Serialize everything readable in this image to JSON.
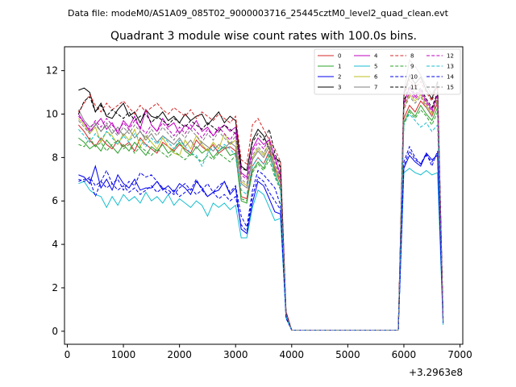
{
  "header": {
    "file_line": "Data file: modeM0/AS1A09_085T02_9000003716_25445cztM0_level2_quad_clean.evt"
  },
  "chart_data": {
    "type": "line",
    "title": "Quadrant 3 module wise count rates with 100.0s bins.",
    "xlabel": "",
    "ylabel": "",
    "x_offset_label": "+3.2963e8",
    "xlim": [
      -50,
      7050
    ],
    "ylim": [
      -0.6,
      13.1
    ],
    "xticks": [
      0,
      1000,
      2000,
      3000,
      4000,
      5000,
      6000,
      7000
    ],
    "yticks": [
      0,
      2,
      4,
      6,
      8,
      10,
      12
    ],
    "legend_position": "top-right",
    "x": [
      200,
      300,
      400,
      500,
      600,
      700,
      800,
      900,
      1000,
      1100,
      1200,
      1300,
      1400,
      1500,
      1600,
      1700,
      1800,
      1900,
      2000,
      2100,
      2200,
      2300,
      2400,
      2500,
      2600,
      2700,
      2800,
      2900,
      3000,
      3100,
      3200,
      3300,
      3400,
      3500,
      3600,
      3700,
      3800,
      3900,
      4000,
      4100,
      4200,
      4300,
      4400,
      4500,
      4600,
      4700,
      4800,
      4900,
      5000,
      5100,
      5200,
      5300,
      5400,
      5500,
      5600,
      5700,
      5800,
      5900,
      6000,
      6100,
      6200,
      6300,
      6400,
      6500,
      6600,
      6700
    ],
    "series": [
      {
        "name": "0",
        "color": "#d62728",
        "dash": "solid",
        "values": [
          9.5,
          9.2,
          8.8,
          8.5,
          8.9,
          8.6,
          8.4,
          8.8,
          8.5,
          8.7,
          8.3,
          8.9,
          8.6,
          8.4,
          8.2,
          8.7,
          8.5,
          8.3,
          8.6,
          8.4,
          8.2,
          8.8,
          8.5,
          8.3,
          8.6,
          8.2,
          8.4,
          8.5,
          8.3,
          6.2,
          6.1,
          7.6,
          8.0,
          7.7,
          8.3,
          7.5,
          6.8,
          0.8,
          0.05,
          0.05,
          0.05,
          0.05,
          0.05,
          0.05,
          0.05,
          0.05,
          0.05,
          0.05,
          0.05,
          0.05,
          0.05,
          0.05,
          0.05,
          0.05,
          0.05,
          0.05,
          0.05,
          0.05,
          9.8,
          10.4,
          10.1,
          10.6,
          10.3,
          9.9,
          10.5,
          0.5
        ]
      },
      {
        "name": "1",
        "color": "#2ca02c",
        "dash": "solid",
        "values": [
          8.9,
          8.7,
          8.4,
          8.6,
          8.3,
          8.8,
          8.5,
          8.2,
          8.6,
          8.3,
          8.7,
          8.4,
          8.1,
          8.5,
          8.3,
          8.6,
          8.2,
          8.4,
          8.7,
          8.3,
          8.1,
          8.5,
          8.2,
          8.4,
          8.0,
          8.3,
          8.5,
          8.1,
          8.2,
          6.0,
          5.9,
          7.4,
          7.8,
          7.5,
          8.1,
          7.3,
          6.6,
          0.8,
          0.05,
          0.05,
          0.05,
          0.05,
          0.05,
          0.05,
          0.05,
          0.05,
          0.05,
          0.05,
          0.05,
          0.05,
          0.05,
          0.05,
          0.05,
          0.05,
          0.05,
          0.05,
          0.05,
          0.05,
          9.6,
          10.2,
          9.9,
          10.4,
          10.0,
          9.7,
          10.3,
          0.5
        ]
      },
      {
        "name": "2",
        "color": "#0000ee",
        "dash": "solid",
        "values": [
          7.2,
          7.1,
          6.8,
          7.6,
          6.6,
          7.0,
          6.5,
          7.2,
          6.8,
          6.6,
          7.0,
          6.5,
          6.6,
          6.6,
          6.9,
          6.5,
          6.7,
          6.4,
          6.8,
          6.6,
          6.3,
          6.9,
          6.6,
          6.2,
          6.4,
          6.5,
          6.9,
          6.3,
          6.6,
          4.7,
          4.5,
          5.9,
          6.9,
          6.7,
          6.1,
          5.5,
          5.4,
          0.7,
          0.05,
          0.05,
          0.05,
          0.05,
          0.05,
          0.05,
          0.05,
          0.05,
          0.05,
          0.05,
          0.05,
          0.05,
          0.05,
          0.05,
          0.05,
          0.05,
          0.05,
          0.05,
          0.05,
          0.05,
          7.5,
          8.1,
          7.8,
          7.6,
          8.2,
          7.9,
          8.1,
          0.4
        ]
      },
      {
        "name": "3",
        "color": "#000000",
        "dash": "solid",
        "values": [
          11.1,
          11.2,
          11.0,
          10.1,
          10.5,
          9.9,
          9.8,
          10.2,
          10.5,
          9.9,
          10.1,
          9.6,
          10.2,
          9.9,
          9.8,
          10.1,
          9.7,
          9.9,
          9.6,
          10.0,
          9.7,
          9.9,
          10.0,
          9.5,
          9.8,
          10.1,
          9.6,
          9.9,
          9.7,
          7.6,
          7.4,
          8.8,
          9.3,
          9.0,
          8.4,
          8.0,
          7.8,
          0.9,
          0.05,
          0.05,
          0.05,
          0.05,
          0.05,
          0.05,
          0.05,
          0.05,
          0.05,
          0.05,
          0.05,
          0.05,
          0.05,
          0.05,
          0.05,
          0.05,
          0.05,
          0.05,
          0.05,
          0.05,
          10.9,
          11.8,
          11.4,
          11.7,
          11.1,
          10.7,
          11.5,
          0.6
        ]
      },
      {
        "name": "4",
        "color": "#bf00bf",
        "dash": "solid",
        "values": [
          10.0,
          9.6,
          9.2,
          9.5,
          9.8,
          9.3,
          9.6,
          9.1,
          9.7,
          9.4,
          9.9,
          9.3,
          10.2,
          9.5,
          9.2,
          9.8,
          9.4,
          9.6,
          9.1,
          9.5,
          9.3,
          9.7,
          9.2,
          9.4,
          9.0,
          9.3,
          9.5,
          9.2,
          9.4,
          7.3,
          7.1,
          8.4,
          8.9,
          8.6,
          8.8,
          8.0,
          7.2,
          0.8,
          0.05,
          0.05,
          0.05,
          0.05,
          0.05,
          0.05,
          0.05,
          0.05,
          0.05,
          0.05,
          0.05,
          0.05,
          0.05,
          0.05,
          0.05,
          0.05,
          0.05,
          0.05,
          0.05,
          0.05,
          10.5,
          11.2,
          10.8,
          11.1,
          10.6,
          10.2,
          10.9,
          0.5
        ]
      },
      {
        "name": "5",
        "color": "#17becf",
        "dash": "solid",
        "values": [
          6.8,
          6.9,
          6.5,
          6.3,
          6.2,
          5.7,
          6.2,
          5.8,
          6.3,
          6.0,
          6.2,
          5.9,
          6.4,
          6.0,
          6.2,
          5.9,
          6.3,
          5.8,
          6.1,
          5.9,
          5.7,
          6.0,
          5.8,
          5.3,
          5.9,
          5.7,
          5.9,
          5.6,
          5.8,
          4.3,
          4.3,
          5.7,
          6.5,
          6.3,
          5.7,
          5.1,
          5.2,
          0.6,
          0.05,
          0.05,
          0.05,
          0.05,
          0.05,
          0.05,
          0.05,
          0.05,
          0.05,
          0.05,
          0.05,
          0.05,
          0.05,
          0.05,
          0.05,
          0.05,
          0.05,
          0.05,
          0.05,
          0.05,
          7.3,
          7.5,
          7.3,
          7.2,
          7.4,
          7.2,
          7.3,
          0.3
        ]
      },
      {
        "name": "6",
        "color": "#bcbd22",
        "dash": "solid",
        "values": [
          9.8,
          9.5,
          9.1,
          9.4,
          8.7,
          9.2,
          9.0,
          8.6,
          9.1,
          8.8,
          9.3,
          8.5,
          9.0,
          8.7,
          8.4,
          8.9,
          8.5,
          8.2,
          8.1,
          8.8,
          8.4,
          9.0,
          8.6,
          8.3,
          8.7,
          8.4,
          9.1,
          8.6,
          8.8,
          6.9,
          6.7,
          8.0,
          8.4,
          8.1,
          8.7,
          7.6,
          7.0,
          0.8,
          0.05,
          0.05,
          0.05,
          0.05,
          0.05,
          0.05,
          0.05,
          0.05,
          0.05,
          0.05,
          0.05,
          0.05,
          0.05,
          0.05,
          0.05,
          0.05,
          0.05,
          0.05,
          0.05,
          0.05,
          10.3,
          10.9,
          10.6,
          10.9,
          10.4,
          10.0,
          10.7,
          0.5
        ]
      },
      {
        "name": "7",
        "color": "#7f7f7f",
        "dash": "solid",
        "values": [
          10.2,
          9.7,
          9.4,
          9.6,
          9.2,
          9.5,
          9.1,
          9.4,
          9.0,
          9.3,
          8.9,
          9.2,
          8.8,
          9.1,
          8.7,
          9.0,
          8.8,
          8.6,
          8.9,
          8.5,
          8.8,
          8.4,
          8.7,
          8.5,
          8.3,
          8.6,
          8.4,
          8.7,
          8.5,
          6.8,
          6.6,
          7.9,
          8.3,
          8.0,
          8.5,
          7.4,
          7.0,
          0.8,
          0.05,
          0.05,
          0.05,
          0.05,
          0.05,
          0.05,
          0.05,
          0.05,
          0.05,
          0.05,
          0.05,
          0.05,
          0.05,
          0.05,
          0.05,
          0.05,
          0.05,
          0.05,
          0.05,
          0.05,
          11.0,
          12.5,
          12.2,
          11.8,
          11.3,
          10.9,
          11.4,
          0.6
        ]
      },
      {
        "name": "8",
        "color": "#d62728",
        "dash": "dashed",
        "values": [
          10.1,
          10.5,
          10.9,
          10.4,
          10.1,
          10.5,
          10.2,
          10.4,
          10.6,
          10.3,
          10.0,
          10.4,
          10.1,
          10.3,
          10.5,
          10.2,
          10.0,
          10.3,
          10.1,
          9.9,
          10.2,
          9.8,
          10.1,
          9.9,
          9.7,
          10.0,
          9.8,
          9.6,
          9.9,
          7.9,
          7.7,
          9.5,
          9.8,
          9.3,
          8.8,
          8.4,
          7.8,
          0.9,
          0.05,
          0.05,
          0.05,
          0.05,
          0.05,
          0.05,
          0.05,
          0.05,
          0.05,
          0.05,
          0.05,
          0.05,
          0.05,
          0.05,
          0.05,
          0.05,
          0.05,
          0.05,
          0.05,
          0.05,
          10.8,
          11.6,
          11.2,
          11.5,
          11.0,
          10.6,
          11.3,
          0.6
        ]
      },
      {
        "name": "9",
        "color": "#2ca02c",
        "dash": "dashed",
        "values": [
          8.6,
          8.5,
          8.9,
          8.5,
          8.7,
          8.3,
          8.6,
          8.8,
          8.4,
          8.6,
          8.2,
          8.5,
          8.3,
          8.1,
          8.4,
          8.2,
          8.0,
          8.3,
          8.1,
          7.9,
          8.2,
          8.0,
          7.8,
          8.1,
          7.9,
          8.2,
          8.0,
          7.8,
          8.1,
          6.1,
          6.0,
          7.3,
          7.7,
          7.4,
          7.9,
          7.1,
          6.5,
          0.7,
          0.05,
          0.05,
          0.05,
          0.05,
          0.05,
          0.05,
          0.05,
          0.05,
          0.05,
          0.05,
          0.05,
          0.05,
          0.05,
          0.05,
          0.05,
          0.05,
          0.05,
          0.05,
          0.05,
          0.05,
          9.5,
          10.1,
          9.8,
          10.2,
          9.9,
          9.5,
          10.1,
          0.4
        ]
      },
      {
        "name": "10",
        "color": "#0000ee",
        "dash": "dashed",
        "values": [
          6.9,
          7.0,
          7.0,
          6.2,
          6.9,
          7.4,
          6.8,
          7.0,
          6.5,
          6.9,
          6.7,
          7.3,
          7.1,
          7.2,
          6.9,
          6.6,
          6.5,
          6.3,
          6.6,
          6.8,
          6.5,
          7.0,
          6.5,
          6.8,
          6.4,
          6.7,
          6.9,
          6.4,
          6.7,
          5.3,
          4.8,
          6.5,
          7.4,
          7.2,
          6.9,
          6.6,
          5.8,
          0.7,
          0.05,
          0.05,
          0.05,
          0.05,
          0.05,
          0.05,
          0.05,
          0.05,
          0.05,
          0.05,
          0.05,
          0.05,
          0.05,
          0.05,
          0.05,
          0.05,
          0.05,
          0.05,
          0.05,
          0.05,
          7.8,
          8.5,
          8.0,
          7.7,
          8.2,
          7.6,
          8.3,
          0.4
        ]
      },
      {
        "name": "11",
        "color": "#000000",
        "dash": "dashed",
        "values": [
          10.0,
          10.6,
          10.8,
          10.1,
          10.4,
          9.9,
          10.2,
          10.0,
          9.8,
          10.1,
          9.7,
          9.9,
          10.0,
          9.6,
          9.9,
          9.7,
          9.5,
          9.8,
          9.6,
          9.4,
          9.7,
          9.5,
          9.3,
          9.6,
          9.4,
          9.2,
          9.5,
          9.3,
          9.1,
          7.5,
          7.4,
          8.7,
          9.1,
          8.8,
          9.3,
          8.2,
          7.5,
          0.8,
          0.05,
          0.05,
          0.05,
          0.05,
          0.05,
          0.05,
          0.05,
          0.05,
          0.05,
          0.05,
          0.05,
          0.05,
          0.05,
          0.05,
          0.05,
          0.05,
          0.05,
          0.05,
          0.05,
          0.05,
          10.6,
          11.3,
          10.9,
          11.2,
          10.7,
          10.3,
          11.0,
          0.6
        ]
      },
      {
        "name": "12",
        "color": "#bf00bf",
        "dash": "dashed",
        "values": [
          9.9,
          9.6,
          9.3,
          9.7,
          9.4,
          9.8,
          9.5,
          9.2,
          9.6,
          9.3,
          9.7,
          9.4,
          9.1,
          9.5,
          9.2,
          9.6,
          9.3,
          9.0,
          9.4,
          9.1,
          9.5,
          9.2,
          8.9,
          9.3,
          9.0,
          9.4,
          9.1,
          8.8,
          9.2,
          7.2,
          7.0,
          8.3,
          8.7,
          8.4,
          8.9,
          7.9,
          7.1,
          0.8,
          0.05,
          0.05,
          0.05,
          0.05,
          0.05,
          0.05,
          0.05,
          0.05,
          0.05,
          0.05,
          0.05,
          0.05,
          0.05,
          0.05,
          0.05,
          0.05,
          0.05,
          0.05,
          0.05,
          0.05,
          10.4,
          11.0,
          10.7,
          11.0,
          10.5,
          10.1,
          10.8,
          0.5
        ]
      },
      {
        "name": "13",
        "color": "#17becf",
        "dash": "dashed",
        "values": [
          9.3,
          9.0,
          8.7,
          9.1,
          8.8,
          9.2,
          8.9,
          8.6,
          9.0,
          8.7,
          9.1,
          8.8,
          8.5,
          8.9,
          8.6,
          9.0,
          8.7,
          8.4,
          8.8,
          8.5,
          8.2,
          8.1,
          7.6,
          8.2,
          8.5,
          8.3,
          8.6,
          8.4,
          8.1,
          6.5,
          6.3,
          7.6,
          8.0,
          7.7,
          8.2,
          7.2,
          6.6,
          0.7,
          0.05,
          0.05,
          0.05,
          0.05,
          0.05,
          0.05,
          0.05,
          0.05,
          0.05,
          0.05,
          0.05,
          0.05,
          0.05,
          0.05,
          0.05,
          0.05,
          0.05,
          0.05,
          0.05,
          0.05,
          9.6,
          10.0,
          9.7,
          9.4,
          9.6,
          9.2,
          9.5,
          0.4
        ]
      },
      {
        "name": "14",
        "color": "#0000ee",
        "dash": "dashed",
        "values": [
          7.0,
          6.9,
          7.1,
          6.7,
          6.9,
          6.6,
          6.8,
          6.5,
          6.7,
          6.4,
          6.6,
          6.3,
          6.5,
          6.7,
          6.4,
          6.6,
          6.3,
          6.5,
          6.2,
          6.4,
          6.6,
          6.3,
          6.5,
          6.2,
          6.4,
          6.1,
          6.3,
          6.0,
          6.2,
          4.9,
          4.6,
          6.2,
          7.1,
          6.9,
          6.4,
          6.0,
          5.6,
          0.6,
          0.05,
          0.05,
          0.05,
          0.05,
          0.05,
          0.05,
          0.05,
          0.05,
          0.05,
          0.05,
          0.05,
          0.05,
          0.05,
          0.05,
          0.05,
          0.05,
          0.05,
          0.05,
          0.05,
          0.05,
          7.6,
          8.3,
          7.9,
          7.7,
          8.1,
          7.8,
          8.2,
          0.4
        ]
      },
      {
        "name": "15",
        "color": "#7f7f7f",
        "dash": "dashed",
        "values": [
          9.7,
          9.4,
          9.1,
          9.5,
          9.2,
          9.6,
          9.3,
          9.0,
          9.4,
          9.1,
          9.5,
          9.2,
          8.9,
          9.3,
          9.0,
          9.4,
          9.1,
          8.8,
          9.2,
          8.9,
          9.3,
          9.0,
          8.7,
          9.1,
          8.8,
          9.2,
          8.9,
          8.6,
          9.0,
          7.0,
          6.8,
          8.1,
          8.5,
          8.2,
          8.7,
          7.7,
          7.0,
          0.8,
          0.05,
          0.05,
          0.05,
          0.05,
          0.05,
          0.05,
          0.05,
          0.05,
          0.05,
          0.05,
          0.05,
          0.05,
          0.05,
          0.05,
          0.05,
          0.05,
          0.05,
          0.05,
          0.05,
          0.05,
          10.2,
          10.8,
          10.5,
          10.8,
          10.3,
          9.9,
          10.6,
          0.5
        ]
      }
    ]
  }
}
